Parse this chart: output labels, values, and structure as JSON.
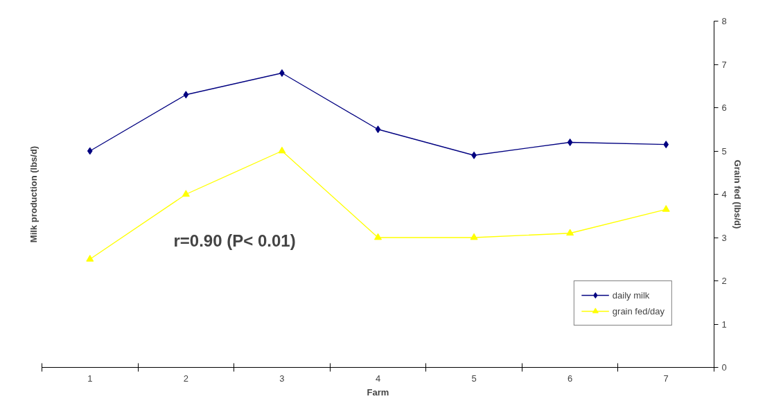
{
  "chart_data": {
    "type": "line",
    "xlabel": "Farm",
    "ylabel": "Milk production (lbs/d)",
    "y2label": "Grain fed (lbs/d)",
    "categories": [
      "1",
      "2",
      "3",
      "4",
      "5",
      "6",
      "7"
    ],
    "series": [
      {
        "name": "daily milk",
        "color": "#000080",
        "marker": "diamond",
        "axis": "y2",
        "values": [
          5.0,
          6.3,
          6.8,
          5.5,
          4.9,
          5.2,
          5.15
        ]
      },
      {
        "name": "grain fed/day",
        "color": "#ffff00",
        "marker": "triangle",
        "axis": "y2",
        "values": [
          2.5,
          4.0,
          5.0,
          3.0,
          3.0,
          3.1,
          3.65
        ]
      }
    ],
    "y2lim": [
      0,
      8
    ],
    "y2ticks": [
      0,
      1,
      2,
      3,
      4,
      5,
      6,
      7,
      8
    ],
    "annotations": [
      "r=0.90 (P< 0.01)"
    ],
    "legend": "bottom right",
    "grid": false
  }
}
